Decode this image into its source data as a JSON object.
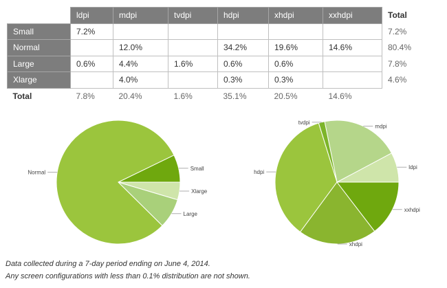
{
  "table": {
    "columns": [
      "ldpi",
      "mdpi",
      "tvdpi",
      "hdpi",
      "xhdpi",
      "xxhdpi"
    ],
    "total_label": "Total",
    "rows": [
      {
        "label": "Small",
        "cells": [
          "7.2%",
          "",
          "",
          "",
          "",
          ""
        ],
        "total": "7.2%"
      },
      {
        "label": "Normal",
        "cells": [
          "",
          "12.0%",
          "",
          "34.2%",
          "19.6%",
          "14.6%"
        ],
        "total": "80.4%"
      },
      {
        "label": "Large",
        "cells": [
          "0.6%",
          "4.4%",
          "1.6%",
          "0.6%",
          "0.6%",
          ""
        ],
        "total": "7.8%"
      },
      {
        "label": "Xlarge",
        "cells": [
          "",
          "4.0%",
          "",
          "0.3%",
          "0.3%",
          ""
        ],
        "total": "4.6%"
      }
    ],
    "totals": [
      "7.8%",
      "20.4%",
      "1.6%",
      "35.1%",
      "20.5%",
      "14.6%"
    ]
  },
  "chart_data": [
    {
      "type": "pie",
      "title": "",
      "labels": [
        "Small",
        "Normal",
        "Large",
        "Xlarge"
      ],
      "values": [
        7.2,
        80.4,
        7.8,
        4.6
      ],
      "colors": [
        "#6fa80e",
        "#9bc53d",
        "#a9d07a",
        "#cfe5aa"
      ]
    },
    {
      "type": "pie",
      "title": "",
      "labels": [
        "ldpi",
        "mdpi",
        "tvdpi",
        "hdpi",
        "xhdpi",
        "xxhdpi"
      ],
      "values": [
        7.8,
        20.4,
        1.6,
        35.1,
        20.5,
        14.6
      ],
      "colors": [
        "#cfe5aa",
        "#b5d68a",
        "#7db52a",
        "#9bc53d",
        "#8ab52f",
        "#6fa80e"
      ]
    }
  ],
  "footnotes": {
    "line1": "Data collected during a 7-day period ending on June 4, 2014.",
    "line2": "Any screen configurations with less than 0.1% distribution are not shown."
  }
}
